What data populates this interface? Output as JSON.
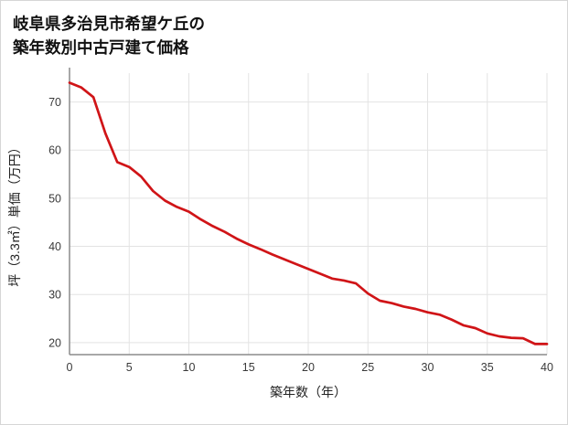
{
  "title": {
    "line1": "岐阜県多治見市希望ケ丘の",
    "line2": "築年数別中古戸建て価格"
  },
  "chart_data": {
    "type": "line",
    "title": "岐阜県多治見市希望ケ丘の築年数別中古戸建て価格",
    "xlabel": "築年数（年）",
    "ylabel": "坪（3.3㎡）単価（万円）",
    "x": [
      0,
      1,
      2,
      3,
      4,
      5,
      6,
      7,
      8,
      9,
      10,
      11,
      12,
      13,
      14,
      15,
      16,
      17,
      18,
      19,
      20,
      21,
      22,
      23,
      24,
      25,
      26,
      27,
      28,
      29,
      30,
      31,
      32,
      33,
      34,
      35,
      36,
      37,
      38,
      39,
      40
    ],
    "values": [
      74,
      73,
      71,
      63.5,
      57.5,
      56.5,
      54.5,
      51.5,
      49.5,
      48.2,
      47.2,
      45.6,
      44.2,
      43,
      41.6,
      40.4,
      39.4,
      38.3,
      37.3,
      36.3,
      35.3,
      34.3,
      33.3,
      32.9,
      32.3,
      30.2,
      28.7,
      28.2,
      27.5,
      27,
      26.3,
      25.8,
      24.8,
      23.6,
      23,
      21.9,
      21.3,
      21,
      20.9,
      19.7,
      19.7
    ],
    "xlim": [
      0,
      40
    ],
    "ylim": [
      17.5,
      76
    ],
    "x_ticks": [
      0,
      5,
      10,
      15,
      20,
      25,
      30,
      35,
      40
    ],
    "y_ticks": [
      20,
      30,
      40,
      50,
      60,
      70
    ],
    "grid": true,
    "legend": "none",
    "colors": {
      "line": "#d01417",
      "grid": "#e3e3e3",
      "axis": "#8c8c8c",
      "tick_text": "#3a3a3a",
      "label_text": "#222222"
    }
  }
}
